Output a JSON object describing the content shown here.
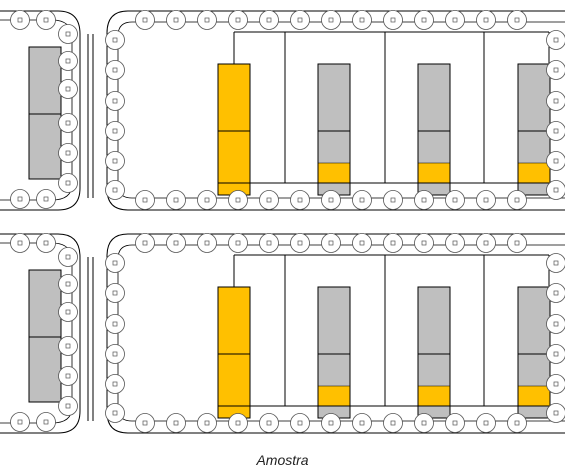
{
  "caption": "Amostra",
  "colors": {
    "highlight": "#FFC000",
    "block": "#BFBFBF",
    "line": "#000000",
    "ring": "#555555"
  },
  "diagram": {
    "panels": [
      {
        "name": "top-panel",
        "columns": [
          {
            "name": "column-1",
            "highlight": "full"
          },
          {
            "name": "column-2",
            "highlight": "band"
          },
          {
            "name": "column-3",
            "highlight": "band"
          },
          {
            "name": "column-4",
            "highlight": "band"
          }
        ]
      },
      {
        "name": "bottom-panel",
        "columns": [
          {
            "name": "column-1",
            "highlight": "full"
          },
          {
            "name": "column-2",
            "highlight": "band"
          },
          {
            "name": "column-3",
            "highlight": "band"
          },
          {
            "name": "column-4",
            "highlight": "band"
          }
        ]
      }
    ]
  }
}
